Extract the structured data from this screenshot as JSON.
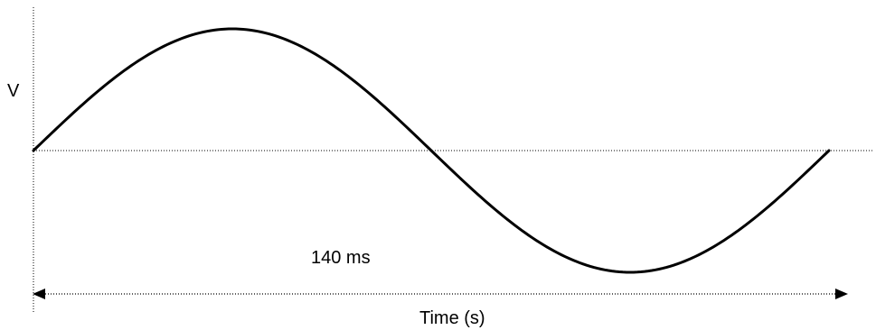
{
  "diagram": {
    "y_axis_label": "V",
    "x_axis_label": "Time (s)",
    "period_label": "140 ms",
    "colors": {
      "curve": "#000000",
      "dotted": "#000000",
      "background": "#ffffff"
    }
  }
}
